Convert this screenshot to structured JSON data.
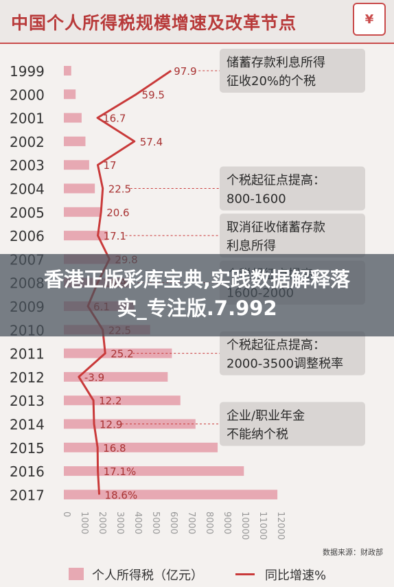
{
  "header": {
    "title": "中国个人所得税规模增速及改革节点",
    "logo_symbol": "¥"
  },
  "overlay": {
    "text": "香港正版彩库宝典,实践数据解释落实_专注版.7.992"
  },
  "chart_data": {
    "type": "bar",
    "categories": [
      "1999",
      "2000",
      "2001",
      "2002",
      "2003",
      "2004",
      "2005",
      "2006",
      "2007",
      "2008",
      "2009",
      "2010",
      "2011",
      "2012",
      "2013",
      "2014",
      "2015",
      "2016",
      "2017"
    ],
    "series": [
      {
        "name": "个人所得税（亿元）",
        "values": [
          414,
          660,
          996,
          1211,
          1418,
          1737,
          2094,
          2453,
          3185,
          3722,
          3949,
          4837,
          6054,
          5820,
          6531,
          7377,
          8617,
          10089,
          11966
        ]
      },
      {
        "name": "同比增速%",
        "values": [
          97.9,
          59.5,
          16.7,
          57.4,
          17,
          22.5,
          20.6,
          17.1,
          29.8,
          16.9,
          6.1,
          22.5,
          25.2,
          -3.9,
          12.2,
          12.9,
          16.8,
          17.1,
          18.6
        ],
        "labels": [
          "97.9",
          "59.5",
          "16.7",
          "57.4",
          "17",
          "22.5",
          "20.6",
          "17.1",
          "29.8",
          "16.9",
          "6.1",
          "22.5",
          "25.2",
          "-3.9",
          "12.2",
          "12.9",
          "16.8",
          "17.1%",
          "18.6%"
        ]
      }
    ],
    "x_ticks": [
      "0",
      "1000",
      "2000",
      "3000",
      "4000",
      "5000",
      "6000",
      "7000",
      "8000",
      "9000",
      "10000",
      "11000",
      "12000"
    ],
    "xlim": [
      0,
      12000
    ],
    "colors": {
      "bar": "#e7a9b3",
      "line": "#c93a3a",
      "callout_bg": "#d9d5d3",
      "connector": "#c93a3a"
    },
    "callouts": [
      {
        "year": "1999",
        "lines": [
          "储蓄存款利息所得",
          "征收20%的个税"
        ]
      },
      {
        "year": "2004",
        "lines": [
          "个税起征点提高：",
          "800-1600"
        ]
      },
      {
        "year": "2006",
        "lines": [
          "取消征收储蓄存款",
          "利息所得"
        ]
      },
      {
        "year": "2008",
        "lines": [
          "个税起征点提高：",
          "1600-2000"
        ]
      },
      {
        "year": "2011",
        "lines": [
          "个税起征点提高：",
          "2000-3500调整税率"
        ]
      },
      {
        "year": "2014",
        "lines": [
          "企业/职业年金",
          "不能纳个税"
        ]
      }
    ],
    "source": "数据来源：财政部"
  }
}
